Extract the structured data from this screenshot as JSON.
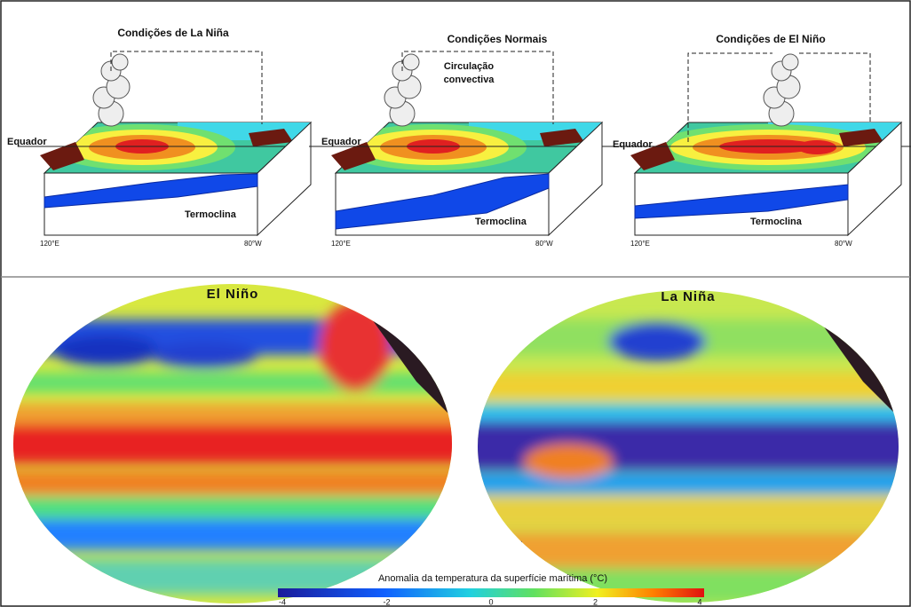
{
  "panels": [
    {
      "title": "Condições de La Niña",
      "equator": "Equador",
      "thermocline": "Termoclina",
      "lon_west": "120°E",
      "lon_east": "80°W"
    },
    {
      "title": "Condições Normais",
      "annotation": "Circulação convectiva",
      "equator": "Equador",
      "thermocline": "Termoclina",
      "lon_west": "120°E",
      "lon_east": "80°W"
    },
    {
      "title": "Condições de El Niño",
      "equator": "Equador",
      "thermocline": "Termoclina",
      "lon_west": "120°E",
      "lon_east": "80°W"
    }
  ],
  "maps": [
    {
      "title": "El Niño"
    },
    {
      "title": "La Niña"
    }
  ],
  "colorbar": {
    "label": "Anomalia da temperatura da superfície marítima (°C)",
    "ticks": [
      "-4",
      "-2",
      "0",
      "2",
      "4"
    ]
  }
}
